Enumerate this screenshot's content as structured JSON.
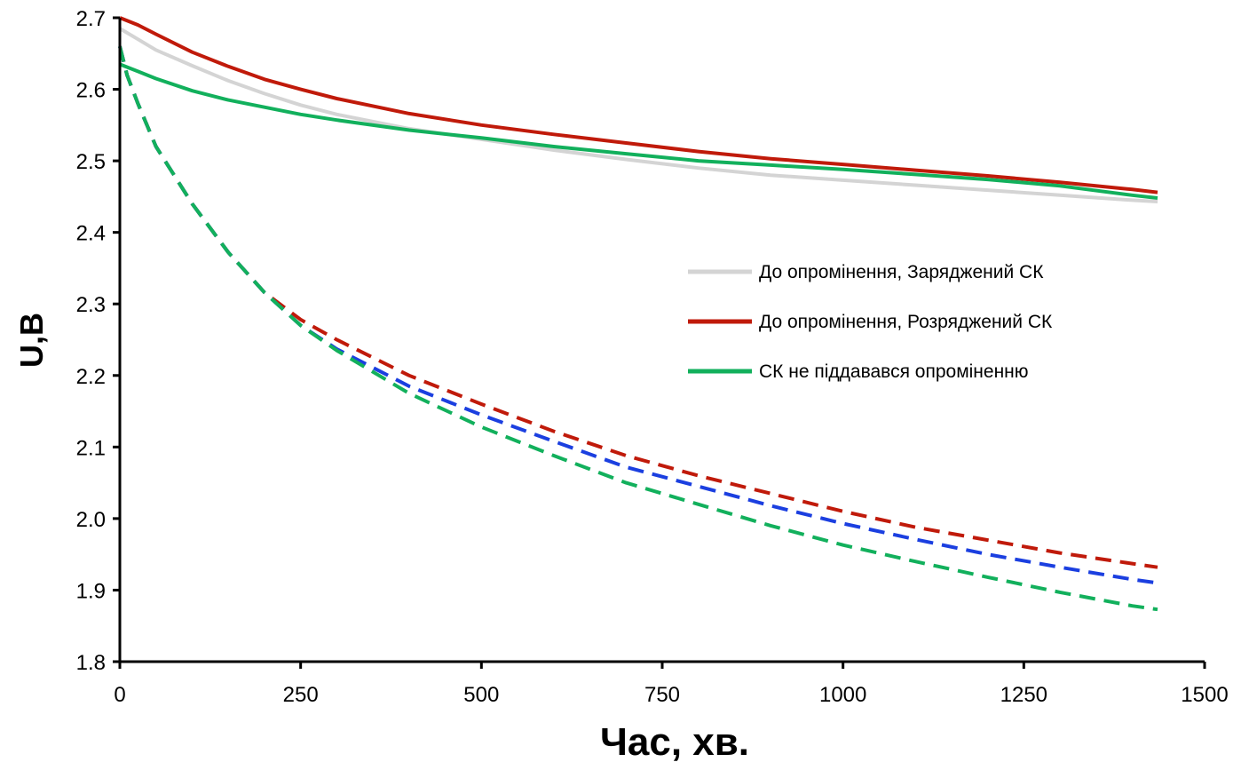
{
  "chart_data": {
    "type": "line",
    "title": "",
    "xlabel": "Час, хв.",
    "ylabel": "U,В",
    "xlim": [
      0,
      1500
    ],
    "ylim": [
      1.8,
      2.7
    ],
    "x_ticks": [
      0,
      250,
      500,
      750,
      1000,
      1250,
      1500
    ],
    "y_ticks": [
      1.8,
      1.9,
      2.0,
      2.1,
      2.2,
      2.3,
      2.4,
      2.5,
      2.6,
      2.7
    ],
    "grid": false,
    "legend_position": "right",
    "series": [
      {
        "name": "До опромінення, Заряджений СК",
        "color": "#d4d4d4",
        "style": "solid",
        "x": [
          0,
          25,
          50,
          100,
          150,
          200,
          250,
          300,
          400,
          500,
          600,
          700,
          800,
          900,
          1000,
          1100,
          1200,
          1300,
          1400,
          1435
        ],
        "y": [
          2.685,
          2.67,
          2.655,
          2.633,
          2.612,
          2.594,
          2.578,
          2.565,
          2.545,
          2.53,
          2.515,
          2.502,
          2.49,
          2.48,
          2.473,
          2.466,
          2.459,
          2.452,
          2.445,
          2.443
        ]
      },
      {
        "name": "До опромінення, Розряджений СК",
        "color": "#c01a0a",
        "style": "solid",
        "x": [
          0,
          25,
          50,
          100,
          150,
          200,
          250,
          300,
          400,
          500,
          600,
          700,
          800,
          900,
          1000,
          1100,
          1200,
          1300,
          1400,
          1435
        ],
        "y": [
          2.7,
          2.69,
          2.677,
          2.652,
          2.632,
          2.614,
          2.6,
          2.587,
          2.566,
          2.55,
          2.537,
          2.525,
          2.513,
          2.503,
          2.495,
          2.487,
          2.479,
          2.47,
          2.46,
          2.456
        ]
      },
      {
        "name": "СК не піддавався опроміненню",
        "color": "#12b05c",
        "style": "solid",
        "x": [
          0,
          25,
          50,
          100,
          150,
          200,
          250,
          300,
          400,
          500,
          600,
          700,
          800,
          900,
          1000,
          1100,
          1200,
          1300,
          1400,
          1435
        ],
        "y": [
          2.635,
          2.625,
          2.615,
          2.598,
          2.585,
          2.575,
          2.565,
          2.557,
          2.543,
          2.532,
          2.52,
          2.51,
          2.5,
          2.494,
          2.488,
          2.481,
          2.474,
          2.465,
          2.452,
          2.448
        ]
      },
      {
        "name": "",
        "color": "#c01a0a",
        "style": "dashed",
        "x": [
          0,
          10,
          25,
          50,
          75,
          100,
          150,
          200,
          250,
          300,
          400,
          500,
          600,
          700,
          800,
          900,
          1000,
          1100,
          1200,
          1300,
          1400,
          1435
        ],
        "y": [
          2.66,
          2.62,
          2.58,
          2.52,
          2.48,
          2.44,
          2.372,
          2.316,
          2.278,
          2.25,
          2.2,
          2.16,
          2.122,
          2.088,
          2.06,
          2.035,
          2.01,
          1.988,
          1.97,
          1.952,
          1.937,
          1.932
        ]
      },
      {
        "name": "",
        "color": "#1b3fe0",
        "style": "dashed",
        "x": [
          0,
          10,
          25,
          50,
          75,
          100,
          150,
          200,
          250,
          300,
          400,
          500,
          600,
          700,
          800,
          900,
          1000,
          1100,
          1200,
          1300,
          1400,
          1435
        ],
        "y": [
          2.66,
          2.62,
          2.58,
          2.52,
          2.48,
          2.44,
          2.372,
          2.316,
          2.27,
          2.237,
          2.185,
          2.145,
          2.108,
          2.072,
          2.045,
          2.018,
          1.993,
          1.971,
          1.95,
          1.932,
          1.915,
          1.91
        ]
      },
      {
        "name": "",
        "color": "#12b05c",
        "style": "dashed",
        "x": [
          0,
          10,
          25,
          50,
          75,
          100,
          150,
          200,
          250,
          300,
          400,
          500,
          600,
          700,
          800,
          900,
          1000,
          1100,
          1200,
          1300,
          1400,
          1435
        ],
        "y": [
          2.66,
          2.62,
          2.58,
          2.52,
          2.48,
          2.44,
          2.372,
          2.316,
          2.27,
          2.235,
          2.175,
          2.128,
          2.088,
          2.05,
          2.02,
          1.99,
          1.963,
          1.94,
          1.918,
          1.897,
          1.878,
          1.873
        ]
      }
    ]
  }
}
